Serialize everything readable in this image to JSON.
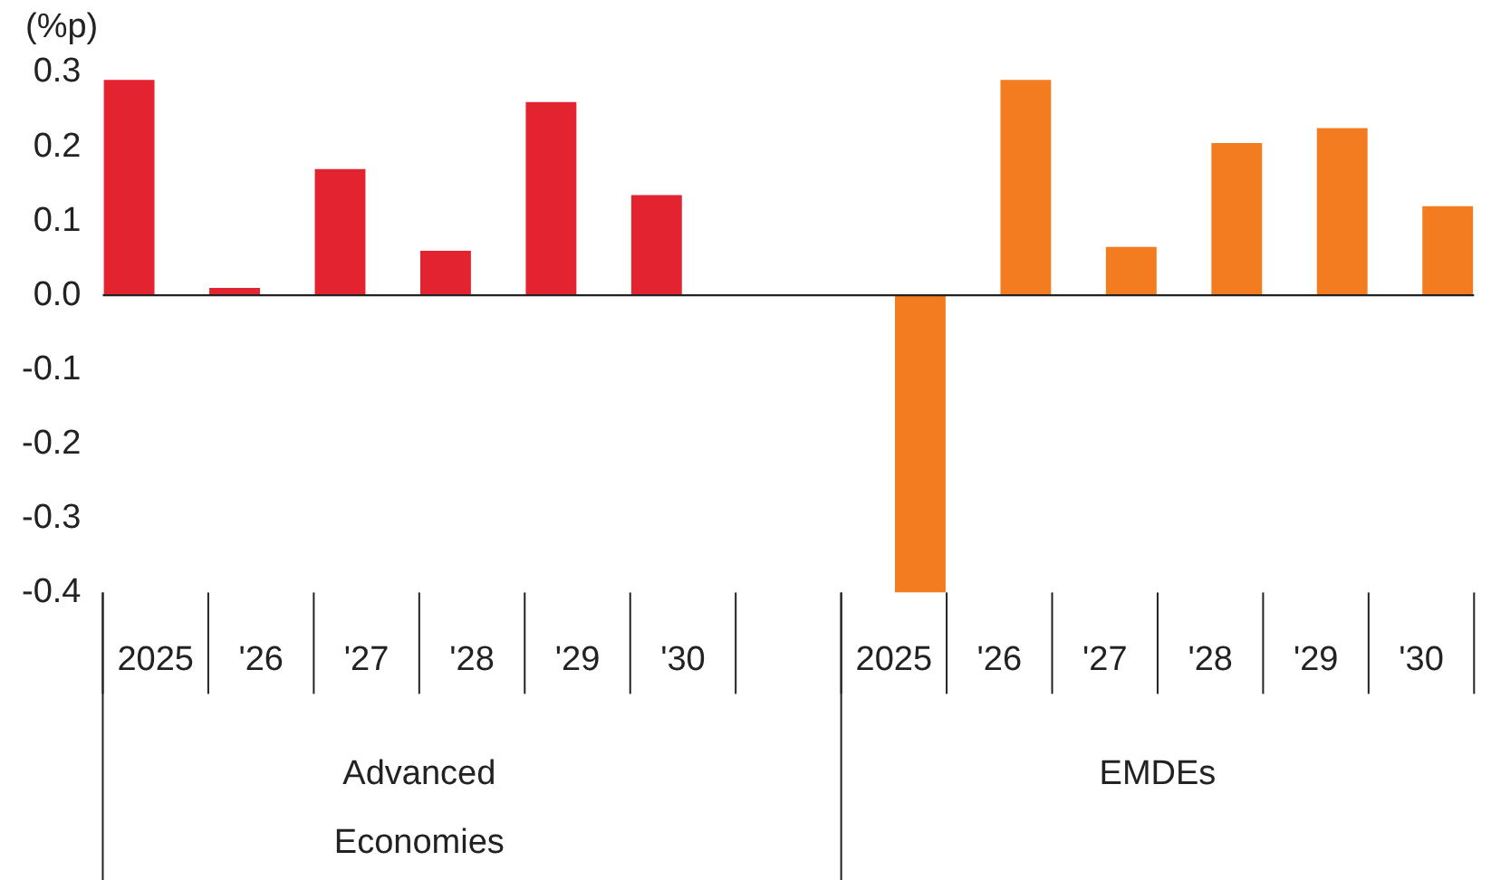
{
  "chart_data": {
    "type": "bar",
    "ylabel": "(%p)",
    "categories": [
      "2025",
      "'26",
      "'27",
      "'28",
      "'29",
      "'30",
      null,
      "2025",
      "'26",
      "'27",
      "'28",
      "'29",
      "'30"
    ],
    "series": [
      {
        "color": "#e3232f",
        "values": [
          0.29,
          0.01,
          0.17,
          0.06,
          0.26,
          0.135,
          null,
          null,
          null,
          null,
          null,
          null,
          null
        ]
      },
      {
        "color": "#f47c20",
        "values": [
          null,
          null,
          null,
          null,
          null,
          null,
          null,
          -0.4,
          0.29,
          0.065,
          0.205,
          0.225,
          0.12
        ]
      }
    ],
    "ylim": [
      -0.4,
      0.3
    ],
    "yticks": [
      -0.4,
      -0.3,
      -0.2,
      -0.1,
      {
        "value": 0,
        "label": "0.0"
      },
      0.1,
      0.2,
      0.3
    ],
    "annotations": [
      "Advanced Economies",
      "EMDEs"
    ],
    "ref_lines": [
      {
        "axis": "y",
        "value": 0,
        "color": "#222222"
      }
    ],
    "grid": false,
    "legend": false
  }
}
